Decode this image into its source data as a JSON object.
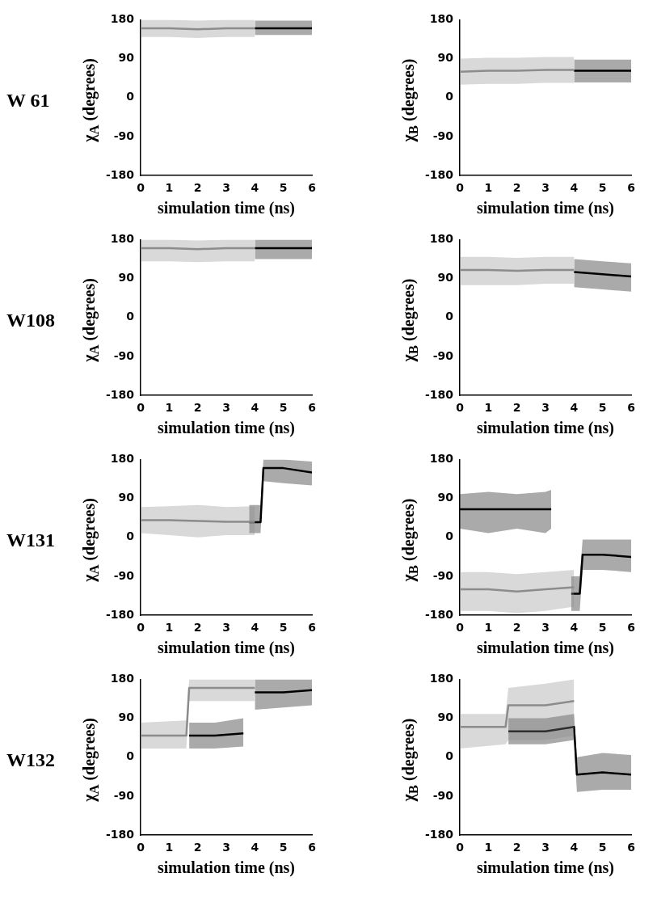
{
  "chart_data": [
    {
      "type": "line",
      "title": "W 61",
      "xlabel": "simulation time (ns)",
      "ylabel": "χ$_{A}$ (degrees)",
      "xlim": [
        0,
        6
      ],
      "xticks": [
        0,
        1,
        2,
        3,
        4,
        5,
        6
      ],
      "ylim": [
        -180,
        180
      ],
      "yticks": [
        -180,
        -90,
        0,
        90,
        180
      ],
      "series": [
        {
          "color": "#8c8c8c",
          "x": [
            0,
            1,
            2,
            3,
            4
          ],
          "values": [
            160,
            160,
            158,
            160,
            160
          ],
          "lower": [
            140,
            140,
            138,
            140,
            140
          ],
          "upper": [
            180,
            180,
            178,
            180,
            180
          ]
        },
        {
          "color": "#000000",
          "x": [
            4,
            5,
            6
          ],
          "values": [
            160,
            160,
            160
          ],
          "lower": [
            145,
            145,
            145
          ],
          "upper": [
            178,
            178,
            178
          ]
        }
      ]
    },
    {
      "type": "line",
      "xlabel": "simulation time (ns)",
      "ylabel": "χ$_{B}$ (degrees)",
      "xlim": [
        0,
        6
      ],
      "xticks": [
        0,
        1,
        2,
        3,
        4,
        5,
        6
      ],
      "ylim": [
        -180,
        180
      ],
      "yticks": [
        -180,
        -90,
        0,
        90,
        180
      ],
      "series": [
        {
          "color": "#8c8c8c",
          "x": [
            0,
            1,
            2,
            3,
            4
          ],
          "values": [
            60,
            62,
            62,
            64,
            64
          ],
          "lower": [
            30,
            32,
            32,
            34,
            34
          ],
          "upper": [
            90,
            92,
            92,
            94,
            94
          ]
        },
        {
          "color": "#000000",
          "x": [
            4,
            5,
            6
          ],
          "values": [
            62,
            62,
            62
          ],
          "lower": [
            35,
            35,
            35
          ],
          "upper": [
            88,
            88,
            88
          ]
        }
      ]
    },
    {
      "type": "line",
      "title": "W108",
      "xlabel": "simulation time (ns)",
      "ylabel": "χ$_{A}$ (degrees)",
      "xlim": [
        0,
        6
      ],
      "xticks": [
        0,
        1,
        2,
        3,
        4,
        5,
        6
      ],
      "ylim": [
        -180,
        180
      ],
      "yticks": [
        -180,
        -90,
        0,
        90,
        180
      ],
      "series": [
        {
          "color": "#8c8c8c",
          "x": [
            0,
            1,
            2,
            3,
            4
          ],
          "values": [
            160,
            160,
            158,
            160,
            160
          ],
          "lower": [
            130,
            130,
            128,
            130,
            130
          ],
          "upper": [
            180,
            180,
            178,
            180,
            180
          ]
        },
        {
          "color": "#000000",
          "x": [
            4,
            5,
            6
          ],
          "values": [
            160,
            160,
            160
          ],
          "lower": [
            135,
            135,
            135
          ],
          "upper": [
            180,
            180,
            180
          ]
        }
      ]
    },
    {
      "type": "line",
      "xlabel": "simulation time (ns)",
      "ylabel": "χ$_{B}$ (degrees)",
      "xlim": [
        0,
        6
      ],
      "xticks": [
        0,
        1,
        2,
        3,
        4,
        5,
        6
      ],
      "ylim": [
        -180,
        180
      ],
      "yticks": [
        -180,
        -90,
        0,
        90,
        180
      ],
      "series": [
        {
          "color": "#8c8c8c",
          "x": [
            0,
            1,
            2,
            3,
            4
          ],
          "values": [
            110,
            110,
            108,
            110,
            110
          ],
          "lower": [
            75,
            75,
            75,
            78,
            78
          ],
          "upper": [
            140,
            140,
            138,
            140,
            140
          ]
        },
        {
          "color": "#000000",
          "x": [
            4,
            5,
            6
          ],
          "values": [
            105,
            100,
            95
          ],
          "lower": [
            70,
            65,
            60
          ],
          "upper": [
            135,
            130,
            125
          ]
        }
      ]
    },
    {
      "type": "line",
      "title": "W131",
      "xlabel": "simulation time (ns)",
      "ylabel": "χ$_{A}$ (degrees)",
      "xlim": [
        0,
        6
      ],
      "xticks": [
        0,
        1,
        2,
        3,
        4,
        5,
        6
      ],
      "ylim": [
        -180,
        180
      ],
      "yticks": [
        -180,
        -90,
        0,
        90,
        180
      ],
      "series": [
        {
          "color": "#8c8c8c",
          "x": [
            0,
            1,
            2,
            3,
            4
          ],
          "values": [
            40,
            40,
            38,
            36,
            36
          ],
          "lower": [
            10,
            5,
            0,
            5,
            5
          ],
          "upper": [
            70,
            72,
            75,
            70,
            72
          ]
        },
        {
          "color": "#000000",
          "x": [
            3.8,
            4.2,
            4.3,
            5,
            6
          ],
          "values": [
            35,
            35,
            160,
            160,
            150
          ],
          "lower": [
            10,
            10,
            130,
            125,
            120
          ],
          "upper": [
            75,
            75,
            180,
            180,
            175
          ]
        }
      ]
    },
    {
      "type": "line",
      "xlabel": "simulation time (ns)",
      "ylabel": "χ$_{B}$ (degrees)",
      "xlim": [
        0,
        6
      ],
      "xticks": [
        0,
        1,
        2,
        3,
        4,
        5,
        6
      ],
      "ylim": [
        -180,
        180
      ],
      "yticks": [
        -180,
        -90,
        0,
        90,
        180
      ],
      "series": [
        {
          "color": "#8c8c8c",
          "x": [
            0,
            1,
            2,
            3,
            4
          ],
          "values": [
            -120,
            -120,
            -125,
            -120,
            -115
          ],
          "lower": [
            -170,
            -170,
            -175,
            -170,
            -160
          ],
          "upper": [
            -80,
            -80,
            -85,
            -80,
            -75
          ]
        },
        {
          "color": "#000000",
          "x": [
            0,
            1,
            2,
            3,
            3.2,
            3.6,
            3.9,
            4.2,
            4.3,
            5,
            6
          ],
          "values": [
            65,
            65,
            65,
            65,
            65,
            null,
            -130,
            -130,
            -40,
            -40,
            -45
          ],
          "lower": [
            20,
            10,
            20,
            10,
            20,
            null,
            -170,
            -170,
            -75,
            -75,
            -80
          ],
          "upper": [
            100,
            105,
            100,
            105,
            110,
            null,
            -90,
            -90,
            -5,
            -5,
            -5
          ]
        }
      ]
    },
    {
      "type": "line",
      "title": "W132",
      "xlabel": "simulation time (ns)",
      "ylabel": "χ$_{A}$ (degrees)",
      "xlim": [
        0,
        6
      ],
      "xticks": [
        0,
        1,
        2,
        3,
        4,
        5,
        6
      ],
      "ylim": [
        -180,
        180
      ],
      "yticks": [
        -180,
        -90,
        0,
        90,
        180
      ],
      "series": [
        {
          "color": "#8c8c8c",
          "x": [
            0,
            1.6,
            1.7,
            3,
            4
          ],
          "values": [
            50,
            50,
            160,
            160,
            160
          ],
          "lower": [
            20,
            20,
            130,
            130,
            130
          ],
          "upper": [
            80,
            85,
            180,
            180,
            180
          ]
        },
        {
          "color": "#000000",
          "x": [
            1.7,
            2.6,
            3.6,
            3.8,
            4,
            5,
            6
          ],
          "values": [
            50,
            50,
            55,
            null,
            150,
            150,
            155
          ],
          "lower": [
            20,
            20,
            25,
            null,
            110,
            115,
            120
          ],
          "upper": [
            80,
            80,
            90,
            null,
            180,
            180,
            180
          ]
        }
      ]
    },
    {
      "type": "line",
      "xlabel": "simulation time (ns)",
      "ylabel": "χ$_{B}$ (degrees)",
      "xlim": [
        0,
        6
      ],
      "xticks": [
        0,
        1,
        2,
        3,
        4,
        5,
        6
      ],
      "ylim": [
        -180,
        180
      ],
      "yticks": [
        -180,
        -90,
        0,
        90,
        180
      ],
      "series": [
        {
          "color": "#8c8c8c",
          "x": [
            0,
            1.6,
            1.7,
            3,
            4
          ],
          "values": [
            70,
            70,
            120,
            120,
            130
          ],
          "lower": [
            20,
            30,
            40,
            40,
            50
          ],
          "upper": [
            100,
            100,
            160,
            170,
            180
          ]
        },
        {
          "color": "#000000",
          "x": [
            1.7,
            3,
            4,
            4.1,
            5,
            6
          ],
          "values": [
            60,
            60,
            70,
            -40,
            -35,
            -40
          ],
          "lower": [
            30,
            30,
            40,
            -80,
            -75,
            -75
          ],
          "upper": [
            90,
            90,
            100,
            0,
            10,
            5
          ]
        }
      ]
    }
  ]
}
